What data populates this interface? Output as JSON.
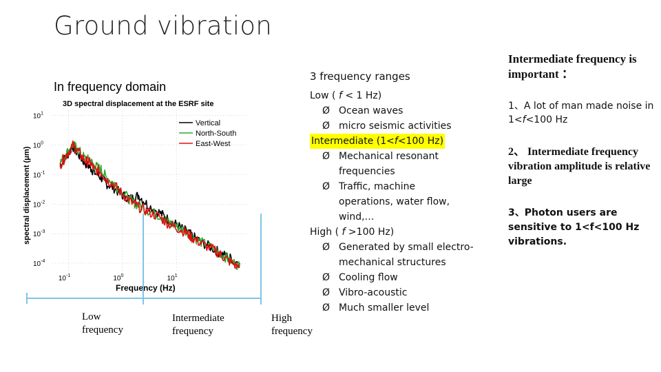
{
  "slide": {
    "title": "Ground vibration",
    "chart_section_title": "In frequency domain"
  },
  "chart_data": {
    "type": "line",
    "title": "3D spectral displacement at the ESRF site",
    "xlabel": "Frequency  (Hz)",
    "ylabel": "spectral displacement (μm)",
    "xscale": "log",
    "yscale": "log",
    "xlim": [
      0.05,
      200
    ],
    "ylim": [
      5e-05,
      15
    ],
    "x_tick_labels": [
      {
        "value": 0.1,
        "base": "10",
        "exp": "-1"
      },
      {
        "value": 1,
        "base": "10",
        "exp": "0"
      },
      {
        "value": 10,
        "base": "10",
        "exp": "1"
      }
    ],
    "y_tick_labels": [
      {
        "value": 10,
        "base": "10",
        "exp": "1"
      },
      {
        "value": 1,
        "base": "10",
        "exp": "0"
      },
      {
        "value": 0.1,
        "base": "10",
        "exp": "-1"
      },
      {
        "value": 0.01,
        "base": "10",
        "exp": "-2"
      },
      {
        "value": 0.001,
        "base": "10",
        "exp": "-3"
      },
      {
        "value": 0.0001,
        "base": "10",
        "exp": "-4"
      }
    ],
    "legend_position": "top-right",
    "x": [
      0.07,
      0.09,
      0.12,
      0.15,
      0.2,
      0.25,
      0.3,
      0.4,
      0.5,
      0.7,
      1.0,
      1.5,
      2.0,
      3.0,
      5.0,
      7.0,
      10,
      15,
      20,
      30,
      50,
      70,
      100,
      150
    ],
    "series": [
      {
        "name": "Vertical",
        "color": "#000000",
        "values": [
          0.2,
          0.4,
          0.9,
          0.5,
          0.25,
          0.18,
          0.12,
          0.08,
          0.05,
          0.035,
          0.02,
          0.015,
          0.02,
          0.009,
          0.005,
          0.003,
          0.002,
          0.0012,
          0.0008,
          0.0005,
          0.0003,
          0.0002,
          0.00015,
          0.0001
        ]
      },
      {
        "name": "North-South",
        "color": "#2ea82e",
        "values": [
          0.25,
          0.5,
          1.0,
          0.7,
          0.35,
          0.3,
          0.2,
          0.15,
          0.08,
          0.05,
          0.025,
          0.012,
          0.009,
          0.006,
          0.004,
          0.0025,
          0.0018,
          0.0012,
          0.0008,
          0.0005,
          0.0003,
          0.0002,
          0.00012,
          8e-05
        ]
      },
      {
        "name": "East-West",
        "color": "#e01010",
        "values": [
          0.22,
          0.45,
          0.95,
          0.6,
          0.3,
          0.25,
          0.15,
          0.12,
          0.07,
          0.045,
          0.022,
          0.011,
          0.008,
          0.0055,
          0.0035,
          0.0022,
          0.0016,
          0.0011,
          0.0007,
          0.00045,
          0.00028,
          0.00018,
          0.00011,
          7e-05
        ]
      }
    ]
  },
  "axis_bands": {
    "low": "Low frequency",
    "intermediate": "Intermediate frequency",
    "high": "High frequency"
  },
  "ranges": {
    "heading": "3 frequency ranges",
    "low_head_a": "Low ( ",
    "low_head_f": "f",
    "low_head_b": " < 1 Hz)",
    "low_items": [
      "Ocean waves",
      "micro seismic activities"
    ],
    "inter_head_a": "Intermediate (1<",
    "inter_head_f": "f",
    "inter_head_b": "<100 Hz)",
    "inter_item1_l1": "Mechanical resonant",
    "inter_item1_l2": "frequencies",
    "inter_item2_l1": "Traffic, machine",
    "inter_item2_l2": "operations, water flow,",
    "inter_item2_l3": "wind,…",
    "high_head_a": "High ( ",
    "high_head_f": "f",
    "high_head_b": " >100 Hz)",
    "high_item1_l1": "Generated by small electro-",
    "high_item1_l2": "mechanical structures",
    "high_item2": "Cooling flow",
    "high_item3": "Vibro-acoustic",
    "high_item4": "Much smaller level",
    "bullet": "Ø",
    "highlight_color": "#ffff00"
  },
  "notes": {
    "important": "Intermediate frequency is important ：",
    "p1_a": "1、A lot of man made noise in 1<",
    "p1_f": "f",
    "p1_b": "<100 Hz",
    "p2": "2、 Intermediate frequency vibration amplitude is relative large",
    "p3": "3、Photon users are sensitive to 1<f<100 Hz vibrations."
  },
  "colors": {
    "band_line": "#7fc4e8"
  }
}
